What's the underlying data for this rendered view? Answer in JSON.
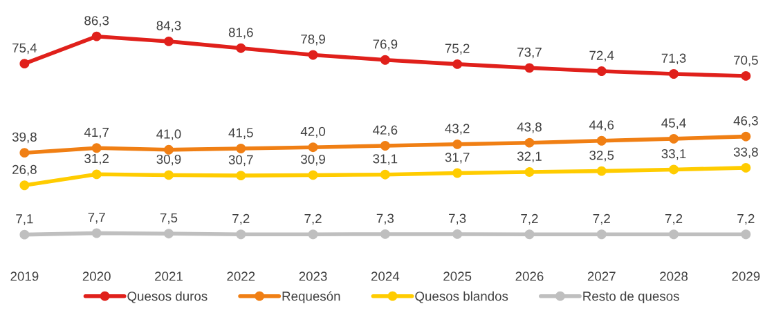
{
  "chart_data": {
    "type": "line",
    "categories": [
      "2019",
      "2020",
      "2021",
      "2022",
      "2023",
      "2024",
      "2025",
      "2026",
      "2027",
      "2028",
      "2029"
    ],
    "series": [
      {
        "name": "Quesos duros",
        "color": "#e0201b",
        "values": [
          75.4,
          86.3,
          84.3,
          81.6,
          78.9,
          76.9,
          75.2,
          73.7,
          72.4,
          71.3,
          70.5
        ],
        "value_labels": [
          "75,4",
          "86,3",
          "84,3",
          "81,6",
          "78,9",
          "76,9",
          "75,2",
          "73,7",
          "72,4",
          "71,3",
          "70,5"
        ]
      },
      {
        "name": "Requesón",
        "color": "#f07f14",
        "values": [
          39.8,
          41.7,
          41.0,
          41.5,
          42.0,
          42.6,
          43.2,
          43.8,
          44.6,
          45.4,
          46.3
        ],
        "value_labels": [
          "39,8",
          "41,7",
          "41,0",
          "41,5",
          "42,0",
          "42,6",
          "43,2",
          "43,8",
          "44,6",
          "45,4",
          "46,3"
        ]
      },
      {
        "name": "Quesos blandos",
        "color": "#ffcc00",
        "values": [
          26.8,
          31.2,
          30.9,
          30.7,
          30.9,
          31.1,
          31.7,
          32.1,
          32.5,
          33.1,
          33.8
        ],
        "value_labels": [
          "26,8",
          "31,2",
          "30,9",
          "30,7",
          "30,9",
          "31,1",
          "31,7",
          "32,1",
          "32,5",
          "33,1",
          "33,8"
        ]
      },
      {
        "name": "Resto de quesos",
        "color": "#bfbfbf",
        "values": [
          7.1,
          7.7,
          7.5,
          7.2,
          7.2,
          7.3,
          7.3,
          7.2,
          7.2,
          7.2,
          7.2
        ],
        "value_labels": [
          "7,1",
          "7,7",
          "7,5",
          "7,2",
          "7,2",
          "7,3",
          "7,3",
          "7,2",
          "7,2",
          "7,2",
          "7,2"
        ]
      }
    ],
    "marker": "circle",
    "line_style": "solid",
    "grid": false,
    "legend": "bottom",
    "tick_labels": "x"
  }
}
